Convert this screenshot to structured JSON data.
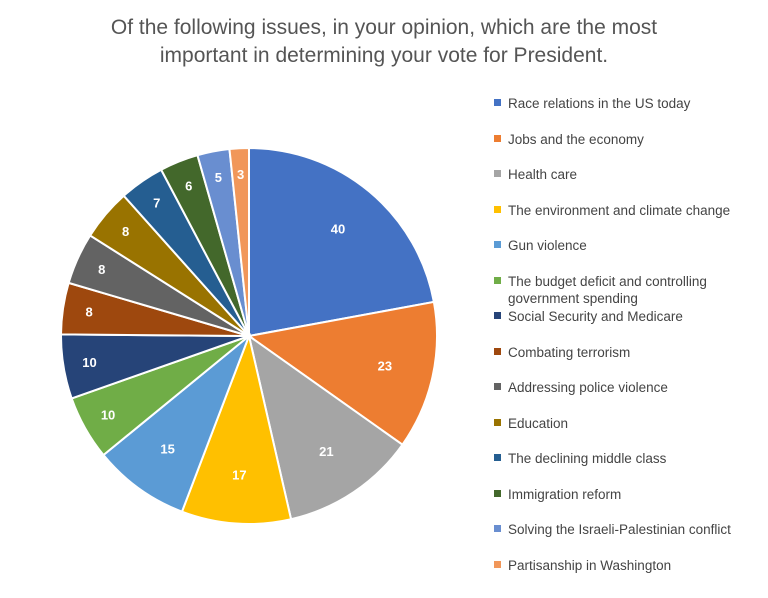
{
  "chart_data": {
    "type": "pie",
    "title_lines": [
      "Of the following issues, in your opinion, which are the most",
      "important in determining your vote for President."
    ],
    "slices": [
      {
        "label": "Race relations in the US today",
        "value": 40,
        "color": "#4472C4"
      },
      {
        "label": "Jobs and the economy",
        "value": 23,
        "color": "#ED7D31"
      },
      {
        "label": "Health care",
        "value": 21,
        "color": "#A5A5A5"
      },
      {
        "label": "The environment and climate change",
        "value": 17,
        "color": "#FFC000"
      },
      {
        "label": "Gun violence",
        "value": 15,
        "color": "#5B9BD5"
      },
      {
        "label": "The budget deficit and controlling government spending",
        "value": 10,
        "color": "#70AD47"
      },
      {
        "label": "Social Security and Medicare",
        "value": 10,
        "color": "#264478"
      },
      {
        "label": "Combating terrorism",
        "value": 8,
        "color": "#9E480E"
      },
      {
        "label": "Addressing police violence",
        "value": 8,
        "color": "#636363"
      },
      {
        "label": "Education",
        "value": 8,
        "color": "#997300"
      },
      {
        "label": "The declining middle class",
        "value": 7,
        "color": "#255E91"
      },
      {
        "label": "Immigration reform",
        "value": 6,
        "color": "#43682B"
      },
      {
        "label": "Solving the Israeli-Palestinian conflict",
        "value": 5,
        "color": "#698ED0"
      },
      {
        "label": "Partisanship in Washington",
        "value": 3,
        "color": "#F1975A"
      }
    ],
    "start_angle": "12 o'clock",
    "direction": "clockwise",
    "legend_position": "right",
    "data_labels": true
  }
}
